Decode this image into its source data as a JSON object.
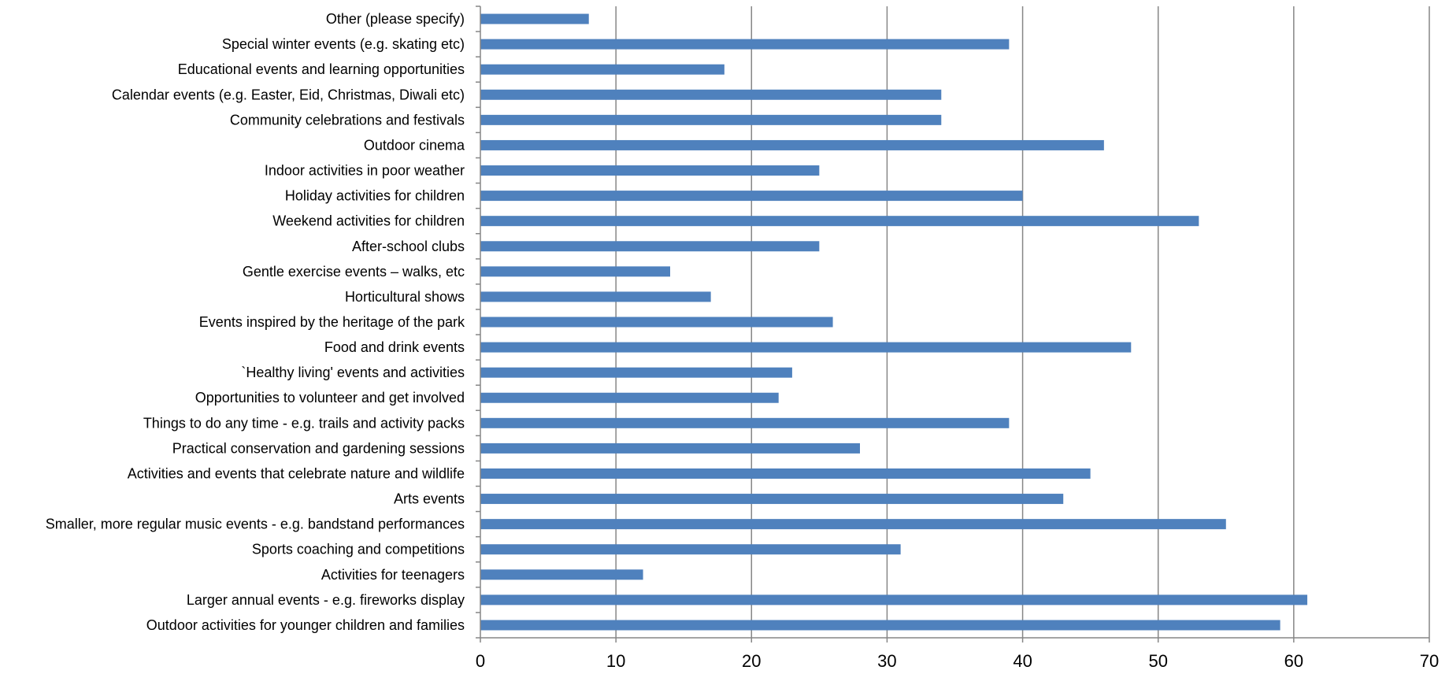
{
  "colors": {
    "bar": "#4f81bd",
    "grid": "#868686",
    "axis": "#868686",
    "text": "#000000"
  },
  "chart_data": {
    "type": "bar",
    "orientation": "horizontal",
    "title": "",
    "xlabel": "",
    "ylabel": "",
    "xlim": [
      0,
      70
    ],
    "xticks": [
      0,
      10,
      20,
      30,
      40,
      50,
      60,
      70
    ],
    "grid": "vertical major gridlines",
    "legend": "none",
    "categories": [
      "Other (please specify)",
      "Special winter events (e.g. skating etc)",
      "Educational events and learning opportunities",
      "Calendar events (e.g. Easter, Eid, Christmas, Diwali etc)",
      "Community celebrations and festivals",
      "Outdoor cinema",
      "Indoor activities in poor weather",
      "Holiday activities for children",
      "Weekend activities for children",
      "After-school clubs",
      "Gentle exercise events – walks, etc",
      "Horticultural shows",
      "Events inspired by the heritage of the park",
      "Food and drink events",
      "`Healthy living' events and activities",
      "Opportunities to volunteer and get involved",
      "Things to do any time - e.g. trails and activity packs",
      "Practical conservation and gardening sessions",
      "Activities and events that celebrate nature and wildlife",
      "Arts events",
      "Smaller, more regular music events - e.g. bandstand performances",
      "Sports coaching and competitions",
      "Activities for teenagers",
      "Larger annual events - e.g. fireworks display",
      "Outdoor activities for younger children and families"
    ],
    "values": [
      8,
      39,
      18,
      34,
      34,
      46,
      25,
      40,
      53,
      25,
      14,
      17,
      26,
      48,
      23,
      22,
      39,
      28,
      45,
      43,
      55,
      31,
      12,
      61,
      59
    ]
  }
}
